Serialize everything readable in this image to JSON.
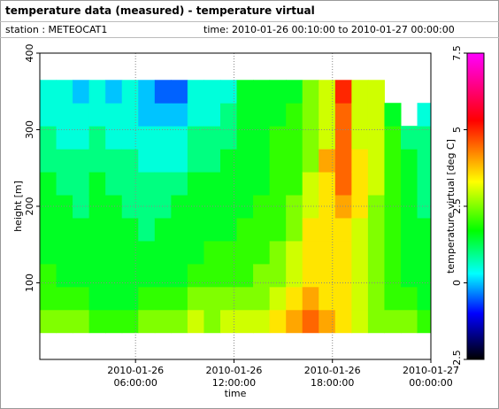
{
  "chart_data": {
    "type": "heatmap",
    "title": "temperature data (measured) - temperature virtual",
    "subtitles": [
      "station : METEOCAT1",
      "time: 2010-01-26 00:10:00 to 2010-01-27 00:00:00"
    ],
    "xlabel": "time",
    "ylabel": "height [m]",
    "zlabel": "temperature virtual [deg C]",
    "xlim": [
      "2010-01-26 00:10:00",
      "2010-01-27 00:00:00"
    ],
    "xticks": [
      "2010-01-26 06:00:00",
      "2010-01-26 12:00:00",
      "2010-01-26 18:00:00",
      "2010-01-27 00:00:00"
    ],
    "ylim": [
      0,
      400
    ],
    "yticks": [
      100,
      200,
      300,
      400
    ],
    "zlim": [
      -2.5,
      7.5
    ],
    "zticks": [
      -2.5,
      0,
      2.5,
      5,
      7.5
    ],
    "grid": true,
    "colormap": [
      {
        "value": -2.5,
        "color": "#000000"
      },
      {
        "value": -1,
        "color": "#0000ff"
      },
      {
        "value": 0.3,
        "color": "#00ffff"
      },
      {
        "value": 1.7,
        "color": "#00ff00"
      },
      {
        "value": 3.3,
        "color": "#ffff00"
      },
      {
        "value": 5.3,
        "color": "#ff0000"
      },
      {
        "value": 7.5,
        "color": "#ff00ff"
      }
    ],
    "x": [
      "2010-01-26 00:40:00",
      "2010-01-26 01:40:00",
      "2010-01-26 02:40:00",
      "2010-01-26 03:40:00",
      "2010-01-26 04:40:00",
      "2010-01-26 05:40:00",
      "2010-01-26 06:40:00",
      "2010-01-26 07:40:00",
      "2010-01-26 08:40:00",
      "2010-01-26 09:40:00",
      "2010-01-26 10:40:00",
      "2010-01-26 11:40:00",
      "2010-01-26 12:40:00",
      "2010-01-26 13:40:00",
      "2010-01-26 14:40:00",
      "2010-01-26 15:40:00",
      "2010-01-26 16:40:00",
      "2010-01-26 17:40:00",
      "2010-01-26 18:40:00",
      "2010-01-26 19:40:00",
      "2010-01-26 20:40:00",
      "2010-01-26 21:40:00",
      "2010-01-26 22:40:00",
      "2010-01-26 23:40:00"
    ],
    "y": [
      50,
      80,
      110,
      140,
      170,
      200,
      230,
      260,
      290,
      320,
      350
    ],
    "values": [
      [
        2.5,
        2.0,
        2.0,
        1.5,
        1.5,
        1.5,
        1.5,
        1.0,
        1.0,
        0.5,
        0.5
      ],
      [
        2.5,
        2.0,
        1.5,
        1.5,
        1.5,
        1.5,
        1.0,
        1.0,
        0.5,
        0.5,
        0.5
      ],
      [
        2.5,
        2.0,
        1.5,
        1.5,
        1.5,
        1.0,
        1.0,
        1.0,
        0.5,
        0.5,
        0.0
      ],
      [
        2.0,
        1.5,
        1.5,
        1.5,
        1.5,
        1.5,
        1.5,
        1.0,
        1.0,
        0.5,
        0.5
      ],
      [
        2.0,
        1.5,
        1.5,
        1.5,
        1.5,
        1.5,
        1.0,
        1.0,
        0.5,
        0.5,
        0.0
      ],
      [
        2.0,
        1.5,
        1.5,
        1.5,
        1.5,
        1.0,
        1.0,
        1.0,
        0.5,
        0.5,
        0.5
      ],
      [
        2.5,
        2.0,
        1.5,
        1.5,
        1.0,
        1.0,
        1.0,
        0.5,
        0.5,
        0.0,
        0.0
      ],
      [
        2.5,
        2.0,
        1.5,
        1.5,
        1.5,
        1.0,
        1.0,
        0.5,
        0.5,
        0.0,
        -0.5
      ],
      [
        2.5,
        2.0,
        1.5,
        1.5,
        1.5,
        1.5,
        1.0,
        0.5,
        0.5,
        0.0,
        -0.5
      ],
      [
        3.0,
        2.5,
        2.0,
        1.5,
        1.5,
        1.5,
        1.5,
        1.0,
        1.0,
        0.5,
        0.5
      ],
      [
        2.5,
        2.5,
        2.0,
        2.0,
        1.5,
        1.5,
        1.5,
        1.0,
        1.0,
        0.5,
        0.5
      ],
      [
        3.0,
        2.5,
        2.0,
        2.0,
        1.5,
        1.5,
        1.5,
        1.5,
        1.0,
        1.0,
        0.5
      ],
      [
        3.0,
        2.5,
        2.0,
        2.0,
        2.0,
        1.5,
        1.5,
        1.5,
        1.5,
        1.5,
        1.5
      ],
      [
        3.0,
        2.5,
        2.5,
        2.0,
        2.0,
        2.0,
        1.5,
        1.5,
        1.5,
        1.5,
        1.5
      ],
      [
        3.5,
        3.0,
        2.5,
        2.5,
        2.0,
        2.0,
        2.0,
        2.0,
        2.0,
        1.5,
        1.5
      ],
      [
        4.0,
        3.5,
        3.0,
        3.0,
        2.5,
        2.5,
        2.0,
        2.0,
        2.0,
        2.0,
        1.5
      ],
      [
        4.5,
        4.0,
        3.5,
        3.5,
        3.5,
        3.0,
        3.0,
        2.5,
        2.5,
        2.5,
        2.5
      ],
      [
        4.0,
        3.5,
        3.5,
        3.5,
        3.5,
        3.5,
        3.5,
        4.0,
        3.0,
        3.0,
        3.0
      ],
      [
        3.5,
        3.5,
        3.5,
        3.5,
        3.5,
        4.0,
        4.5,
        4.5,
        4.5,
        4.5,
        5.0
      ],
      [
        3.0,
        3.0,
        3.0,
        3.0,
        3.0,
        3.5,
        3.5,
        3.5,
        3.0,
        3.0,
        3.0
      ],
      [
        2.5,
        2.5,
        2.5,
        2.5,
        2.5,
        2.5,
        3.0,
        3.0,
        3.0,
        3.0,
        3.0
      ],
      [
        2.5,
        2.0,
        2.0,
        2.0,
        2.0,
        2.0,
        2.0,
        2.0,
        2.0,
        1.5,
        null
      ],
      [
        2.5,
        2.0,
        1.5,
        1.5,
        1.5,
        1.5,
        1.5,
        1.5,
        1.0,
        null,
        null
      ],
      [
        2.0,
        1.5,
        1.5,
        1.5,
        1.5,
        1.0,
        1.0,
        1.0,
        1.0,
        0.5,
        null
      ]
    ]
  }
}
